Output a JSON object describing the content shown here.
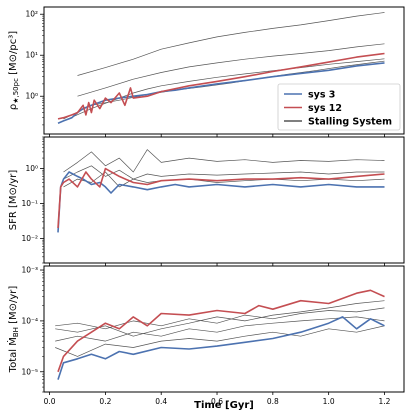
{
  "chart_data": {
    "type": "line",
    "xlabel": "Time [Gyr]",
    "xlim": [
      -0.02,
      1.27
    ],
    "xticks": [
      "0.0",
      "0.2",
      "0.4",
      "0.6",
      "0.8",
      "1.0",
      "1.2"
    ],
    "legend": {
      "placement": "bottom-right of top panel",
      "entries": [
        {
          "label": "sys 3",
          "color": "#4c72b0"
        },
        {
          "label": "sys 12",
          "color": "#c44e52"
        },
        {
          "label": "Stalling System",
          "color": "#555555"
        }
      ]
    },
    "panels": [
      {
        "ylabel": "ρ★,50pc [M⊙/pc³]",
        "ylabel_parts": {
          "main": "ρ",
          "sub": "★,50pc",
          "units": " [M⊙/pc³]"
        },
        "scale": "log",
        "ylim": [
          0.12,
          150
        ],
        "yticks": [
          {
            "v": 1,
            "t": "10⁰"
          },
          {
            "v": 10,
            "t": "10¹"
          },
          {
            "v": 100,
            "t": "10²"
          }
        ],
        "series": [
          {
            "name": "sys 3",
            "color": "#4c72b0",
            "width": 1.6,
            "x": [
              0.03,
              0.05,
              0.08,
              0.1,
              0.12,
              0.15,
              0.2,
              0.25,
              0.3,
              0.35,
              0.4,
              0.45,
              0.5,
              0.6,
              0.7,
              0.8,
              0.9,
              1.0,
              1.1,
              1.2
            ],
            "y": [
              0.22,
              0.25,
              0.3,
              0.4,
              0.5,
              0.6,
              0.8,
              0.9,
              1.0,
              1.1,
              1.3,
              1.4,
              1.6,
              2.0,
              2.4,
              3.0,
              3.6,
              4.3,
              5.5,
              6.5
            ]
          },
          {
            "name": "sys 12",
            "color": "#c44e52",
            "width": 1.6,
            "x": [
              0.03,
              0.05,
              0.08,
              0.1,
              0.12,
              0.13,
              0.14,
              0.15,
              0.16,
              0.18,
              0.2,
              0.22,
              0.25,
              0.27,
              0.29,
              0.3,
              0.35,
              0.4,
              0.5,
              0.6,
              0.7,
              0.8,
              0.9,
              1.0,
              1.1,
              1.2
            ],
            "y": [
              0.28,
              0.3,
              0.35,
              0.4,
              0.6,
              0.35,
              0.7,
              0.4,
              0.8,
              0.5,
              0.9,
              0.7,
              1.2,
              0.6,
              1.6,
              0.9,
              1.0,
              1.3,
              1.8,
              2.3,
              3.0,
              4.0,
              5.2,
              6.8,
              9.0,
              11.0
            ]
          },
          {
            "name": "",
            "color": "#555555",
            "width": 0.7,
            "x": [
              0.1,
              0.2,
              0.3,
              0.4,
              0.5,
              0.6,
              0.7,
              0.8,
              0.9,
              1.0,
              1.1,
              1.2
            ],
            "y": [
              3.2,
              5.0,
              8.0,
              14,
              20,
              28,
              36,
              45,
              55,
              70,
              90,
              110
            ]
          },
          {
            "name": "",
            "color": "#555555",
            "width": 0.7,
            "x": [
              0.1,
              0.2,
              0.3,
              0.4,
              0.5,
              0.6,
              0.7,
              0.8,
              0.9,
              1.0,
              1.1,
              1.2
            ],
            "y": [
              1.0,
              1.6,
              2.6,
              3.8,
              5.2,
              6.5,
              8.0,
              9.5,
              11,
              13,
              16,
              19
            ]
          },
          {
            "name": "",
            "color": "#555555",
            "width": 0.7,
            "x": [
              0.05,
              0.15,
              0.25,
              0.3,
              0.35,
              0.4,
              0.5,
              0.6,
              0.7,
              0.8,
              0.9,
              1.0,
              1.1,
              1.2
            ],
            "y": [
              0.25,
              0.5,
              0.9,
              1.2,
              1.5,
              1.8,
              2.3,
              2.9,
              3.5,
              4.2,
              5.0,
              6.0,
              7.0,
              8.2
            ]
          },
          {
            "name": "",
            "color": "#555555",
            "width": 0.7,
            "x": [
              0.05,
              0.15,
              0.25,
              0.35,
              0.45,
              0.55,
              0.65,
              0.75,
              0.85,
              0.95,
              1.05,
              1.15,
              1.2
            ],
            "y": [
              0.28,
              0.6,
              0.8,
              1.1,
              1.4,
              1.7,
              2.1,
              2.7,
              3.4,
              4.2,
              5.3,
              6.5,
              7.2
            ]
          }
        ]
      },
      {
        "ylabel": "SFR [M⊙/yr]",
        "ylabel_parts": {
          "main": "SFR",
          "sub": "",
          "units": " [M⊙/yr]"
        },
        "scale": "log",
        "ylim": [
          0.002,
          8
        ],
        "yticks": [
          {
            "v": 0.01,
            "t": "10⁻²"
          },
          {
            "v": 0.1,
            "t": "10⁻¹"
          },
          {
            "v": 1,
            "t": "10⁰"
          }
        ],
        "series": [
          {
            "name": "sys 3",
            "color": "#4c72b0",
            "width": 1.6,
            "x": [
              0.03,
              0.04,
              0.05,
              0.07,
              0.1,
              0.12,
              0.15,
              0.18,
              0.2,
              0.22,
              0.25,
              0.3,
              0.35,
              0.4,
              0.45,
              0.5,
              0.6,
              0.7,
              0.8,
              0.9,
              1.0,
              1.1,
              1.2
            ],
            "y": [
              0.015,
              0.3,
              0.5,
              0.8,
              0.6,
              0.5,
              0.35,
              0.4,
              0.3,
              0.2,
              0.35,
              0.3,
              0.25,
              0.3,
              0.35,
              0.3,
              0.35,
              0.3,
              0.35,
              0.3,
              0.35,
              0.3,
              0.3
            ]
          },
          {
            "name": "sys 12",
            "color": "#c44e52",
            "width": 1.6,
            "x": [
              0.03,
              0.04,
              0.05,
              0.07,
              0.1,
              0.13,
              0.15,
              0.18,
              0.2,
              0.25,
              0.3,
              0.35,
              0.4,
              0.5,
              0.6,
              0.7,
              0.8,
              0.9,
              1.0,
              1.1,
              1.2
            ],
            "y": [
              0.02,
              0.3,
              0.4,
              0.5,
              0.3,
              0.8,
              0.5,
              0.3,
              1.0,
              0.6,
              0.4,
              0.35,
              0.45,
              0.5,
              0.45,
              0.5,
              0.5,
              0.55,
              0.5,
              0.6,
              0.7
            ]
          },
          {
            "name": "",
            "color": "#555555",
            "width": 0.7,
            "x": [
              0.05,
              0.1,
              0.15,
              0.2,
              0.25,
              0.3,
              0.35,
              0.4,
              0.5,
              0.6,
              0.7,
              0.8,
              0.9,
              1.0,
              1.1,
              1.2
            ],
            "y": [
              0.8,
              1.5,
              3.0,
              1.2,
              2.0,
              0.8,
              3.5,
              1.5,
              2.0,
              1.6,
              1.8,
              1.5,
              1.7,
              1.6,
              1.8,
              1.7
            ]
          },
          {
            "name": "",
            "color": "#555555",
            "width": 0.7,
            "x": [
              0.05,
              0.1,
              0.15,
              0.2,
              0.25,
              0.3,
              0.35,
              0.4,
              0.5,
              0.6,
              0.7,
              0.8,
              0.9,
              1.0,
              1.1,
              1.2
            ],
            "y": [
              0.5,
              0.8,
              1.2,
              0.6,
              0.9,
              0.5,
              0.7,
              0.6,
              0.7,
              0.65,
              0.7,
              0.75,
              0.8,
              0.7,
              0.8,
              0.8
            ]
          },
          {
            "name": "",
            "color": "#555555",
            "width": 0.7,
            "x": [
              0.05,
              0.1,
              0.15,
              0.2,
              0.25,
              0.3,
              0.35,
              0.4,
              0.5,
              0.6,
              0.7,
              0.8,
              0.9,
              1.0,
              1.1,
              1.2
            ],
            "y": [
              0.3,
              0.5,
              0.4,
              0.8,
              0.3,
              0.5,
              0.4,
              0.45,
              0.5,
              0.4,
              0.45,
              0.5,
              0.45,
              0.5,
              0.45,
              0.5
            ]
          }
        ]
      },
      {
        "ylabel": "Total Ṁ_BH [M⊙/yr]",
        "ylabel_parts": {
          "main": "Total Ṁ",
          "sub": "BH",
          "units": " [M⊙/yr]"
        },
        "scale": "log",
        "ylim": [
          4e-06,
          0.0012
        ],
        "yticks": [
          {
            "v": 1e-05,
            "t": "10⁻⁵"
          },
          {
            "v": 0.0001,
            "t": "10⁻⁴"
          },
          {
            "v": 0.001,
            "t": "10⁻³"
          }
        ],
        "series": [
          {
            "name": "sys 3",
            "color": "#4c72b0",
            "width": 1.6,
            "x": [
              0.03,
              0.05,
              0.1,
              0.15,
              0.2,
              0.25,
              0.3,
              0.4,
              0.5,
              0.6,
              0.7,
              0.8,
              0.9,
              1.0,
              1.05,
              1.1,
              1.15,
              1.2
            ],
            "y": [
              7e-06,
              1.5e-05,
              1.8e-05,
              2.2e-05,
              1.8e-05,
              2.5e-05,
              2.2e-05,
              3e-05,
              2.8e-05,
              3.2e-05,
              3.8e-05,
              4.5e-05,
              6e-05,
              9e-05,
              0.00012,
              7e-05,
              0.00011,
              8e-05
            ]
          },
          {
            "name": "sys 12",
            "color": "#c44e52",
            "width": 1.6,
            "x": [
              0.03,
              0.05,
              0.1,
              0.15,
              0.2,
              0.25,
              0.3,
              0.35,
              0.4,
              0.5,
              0.6,
              0.7,
              0.75,
              0.8,
              0.9,
              1.0,
              1.1,
              1.15,
              1.2
            ],
            "y": [
              1e-05,
              2e-05,
              4e-05,
              6e-05,
              9e-05,
              7e-05,
              0.00012,
              8e-05,
              0.00014,
              0.00013,
              0.00016,
              0.00014,
              0.0002,
              0.00017,
              0.00025,
              0.00022,
              0.00035,
              0.0004,
              0.0003
            ]
          },
          {
            "name": "",
            "color": "#555555",
            "width": 0.7,
            "x": [
              0.02,
              0.1,
              0.2,
              0.3,
              0.4,
              0.5,
              0.6,
              0.7,
              0.8,
              0.9,
              1.0,
              1.1,
              1.2
            ],
            "y": [
              7e-05,
              6e-05,
              8e-05,
              5e-05,
              7e-05,
              9e-05,
              0.00012,
              0.0001,
              0.00013,
              0.00015,
              0.00018,
              0.00022,
              0.00025
            ]
          },
          {
            "name": "",
            "color": "#555555",
            "width": 0.7,
            "x": [
              0.02,
              0.1,
              0.2,
              0.3,
              0.4,
              0.5,
              0.6,
              0.7,
              0.8,
              0.9,
              1.0,
              1.1,
              1.2
            ],
            "y": [
              4e-05,
              5e-05,
              4e-05,
              6e-05,
              5e-05,
              7e-05,
              6e-05,
              8e-05,
              9e-05,
              0.0001,
              0.00011,
              0.00012,
              0.0001
            ]
          },
          {
            "name": "",
            "color": "#555555",
            "width": 0.7,
            "x": [
              0.02,
              0.1,
              0.2,
              0.3,
              0.4,
              0.5,
              0.6,
              0.7,
              0.8,
              0.9,
              1.0,
              1.1,
              1.2
            ],
            "y": [
              3e-05,
              2e-05,
              3.5e-05,
              3e-05,
              4e-05,
              4.5e-05,
              4e-05,
              5e-05,
              6e-05,
              5e-05,
              7e-05,
              6e-05,
              8e-05
            ]
          },
          {
            "name": "",
            "color": "#555555",
            "width": 0.7,
            "x": [
              0.02,
              0.1,
              0.2,
              0.3,
              0.4,
              0.5,
              0.6,
              0.7,
              0.8,
              0.9,
              1.0,
              1.1,
              1.2
            ],
            "y": [
              8e-05,
              9e-05,
              7e-05,
              0.0001,
              8e-05,
              0.00011,
              9e-05,
              0.00013,
              0.00011,
              0.00014,
              0.00016,
              0.00015,
              0.00018
            ]
          }
        ]
      }
    ]
  }
}
